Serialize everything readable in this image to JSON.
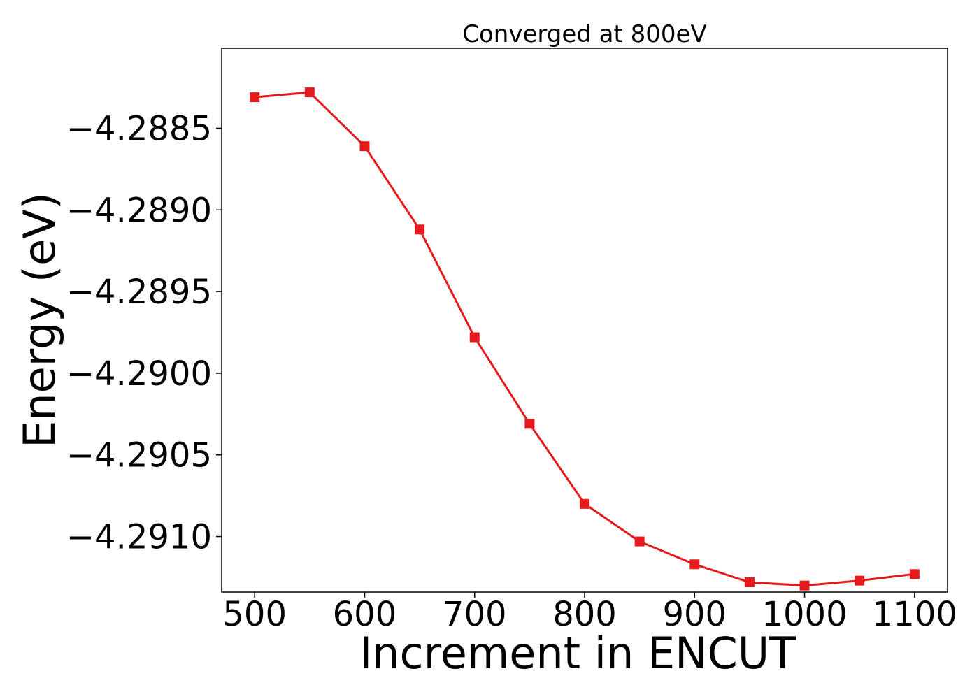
{
  "chart_data": {
    "type": "line",
    "title": "Converged at 800eV",
    "xlabel": "Increment in ENCUT",
    "ylabel": "Energy (eV)",
    "x": [
      500,
      550,
      600,
      650,
      700,
      750,
      800,
      850,
      900,
      950,
      1000,
      1050,
      1100
    ],
    "series": [
      {
        "values": [
          -4.28831,
          -4.28828,
          -4.28861,
          -4.28912,
          -4.28978,
          -4.29031,
          -4.2908,
          -4.29103,
          -4.29117,
          -4.29128,
          -4.2913,
          -4.29127,
          -4.29123
        ],
        "color": "#e41a1c",
        "marker": "square"
      }
    ],
    "xticks": [
      500,
      600,
      700,
      800,
      900,
      1000,
      1100
    ],
    "xtick_labels": [
      "500",
      "600",
      "700",
      "800",
      "900",
      "1000",
      "1100"
    ],
    "yticks": [
      -4.2885,
      -4.289,
      -4.2895,
      -4.29,
      -4.2905,
      -4.291
    ],
    "ytick_labels": [
      "−4.2885",
      "−4.2890",
      "−4.2895",
      "−4.2900",
      "−4.2905",
      "−4.2910"
    ],
    "xlim": [
      470,
      1130
    ],
    "ylim": [
      -4.29134,
      -4.28801
    ],
    "grid": false,
    "legend": "none"
  }
}
